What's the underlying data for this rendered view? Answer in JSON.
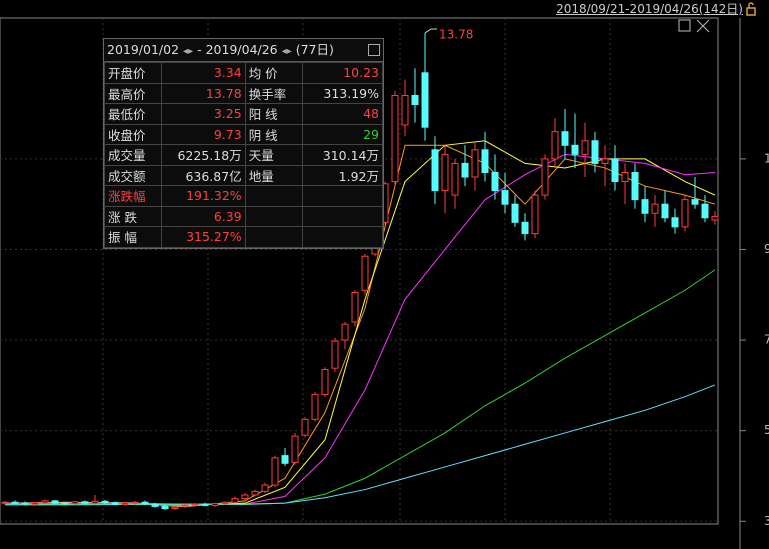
{
  "top_bar": {
    "range": "2018/09/21-2019/04/26(142日)"
  },
  "stats": {
    "start": "2019/01/02",
    "sep": "-",
    "end": "2019/04/26",
    "days": "(77日)",
    "rows": [
      [
        "开盘价",
        "3.34",
        "均 价",
        "10.23"
      ],
      [
        "最高价",
        "13.78",
        "换手率",
        "313.19%"
      ],
      [
        "最低价",
        "3.25",
        "阳 线",
        "48"
      ],
      [
        "收盘价",
        "9.73",
        "阴 线",
        "29"
      ],
      [
        "成交量",
        "6225.18万",
        "天量",
        "310.14万"
      ],
      [
        "成交额",
        "636.87亿",
        "地量",
        "1.92万"
      ],
      [
        "涨跌幅",
        "191.32%"
      ],
      [
        "涨 跌",
        "6.39"
      ],
      [
        "振 幅",
        "315.27%"
      ]
    ]
  },
  "chart_data": {
    "type": "candlestick",
    "ylim": [
      2.94,
      14.11
    ],
    "yticks": [
      3,
      5,
      7,
      9,
      11
    ],
    "grid": true,
    "up_color": "#ff3c3c",
    "down_color": "#54fcfc",
    "peak_label": "13.78",
    "ohlc": [
      [
        3.4,
        3.45,
        3.36,
        3.42
      ],
      [
        3.42,
        3.46,
        3.38,
        3.4
      ],
      [
        3.4,
        3.44,
        3.35,
        3.38
      ],
      [
        3.38,
        3.42,
        3.34,
        3.41
      ],
      [
        3.41,
        3.48,
        3.39,
        3.45
      ],
      [
        3.45,
        3.47,
        3.38,
        3.4
      ],
      [
        3.4,
        3.43,
        3.36,
        3.39
      ],
      [
        3.39,
        3.45,
        3.37,
        3.43
      ],
      [
        3.43,
        3.46,
        3.38,
        3.4
      ],
      [
        3.4,
        3.58,
        3.38,
        3.44
      ],
      [
        3.44,
        3.47,
        3.38,
        3.41
      ],
      [
        3.41,
        3.44,
        3.35,
        3.37
      ],
      [
        3.37,
        3.42,
        3.34,
        3.4
      ],
      [
        3.4,
        3.45,
        3.37,
        3.42
      ],
      [
        3.42,
        3.46,
        3.36,
        3.38
      ],
      [
        3.38,
        3.41,
        3.3,
        3.33
      ],
      [
        3.33,
        3.36,
        3.25,
        3.28
      ],
      [
        3.28,
        3.34,
        3.25,
        3.31
      ],
      [
        3.34,
        3.38,
        3.3,
        3.36
      ],
      [
        3.36,
        3.4,
        3.32,
        3.38
      ],
      [
        3.38,
        3.41,
        3.33,
        3.35
      ],
      [
        3.35,
        3.4,
        3.32,
        3.39
      ],
      [
        3.39,
        3.44,
        3.36,
        3.42
      ],
      [
        3.42,
        3.55,
        3.4,
        3.5
      ],
      [
        3.5,
        3.62,
        3.47,
        3.58
      ],
      [
        3.58,
        3.7,
        3.55,
        3.66
      ],
      [
        3.66,
        3.85,
        3.62,
        3.8
      ],
      [
        3.8,
        4.45,
        3.76,
        4.4
      ],
      [
        4.45,
        4.62,
        4.22,
        4.28
      ],
      [
        4.3,
        4.95,
        4.25,
        4.88
      ],
      [
        4.9,
        5.3,
        4.85,
        5.25
      ],
      [
        5.25,
        5.85,
        5.2,
        5.8
      ],
      [
        5.8,
        6.4,
        5.75,
        6.35
      ],
      [
        6.38,
        7.05,
        6.3,
        6.98
      ],
      [
        7.0,
        7.4,
        6.8,
        7.35
      ],
      [
        7.4,
        8.1,
        7.3,
        8.05
      ],
      [
        8.1,
        8.9,
        8.0,
        8.85
      ],
      [
        8.9,
        9.6,
        8.85,
        9.55
      ],
      [
        9.6,
        10.5,
        9.55,
        10.45
      ],
      [
        10.5,
        12.5,
        10.4,
        12.4
      ],
      [
        11.75,
        12.75,
        11.5,
        12.4
      ],
      [
        12.4,
        13.0,
        11.8,
        12.2
      ],
      [
        12.9,
        13.78,
        11.4,
        11.7
      ],
      [
        11.2,
        11.5,
        10.0,
        10.3
      ],
      [
        10.3,
        11.3,
        9.8,
        11.1
      ],
      [
        10.2,
        11.0,
        9.9,
        10.9
      ],
      [
        10.9,
        11.3,
        10.4,
        10.6
      ],
      [
        10.6,
        11.4,
        10.3,
        11.2
      ],
      [
        11.2,
        11.6,
        10.5,
        10.7
      ],
      [
        10.7,
        11.1,
        10.1,
        10.3
      ],
      [
        10.3,
        10.7,
        9.8,
        10.0
      ],
      [
        10.0,
        10.2,
        9.5,
        9.6
      ],
      [
        9.6,
        9.8,
        9.2,
        9.35
      ],
      [
        9.35,
        10.3,
        9.25,
        10.2
      ],
      [
        10.2,
        11.1,
        10.1,
        11.0
      ],
      [
        11.0,
        11.9,
        10.8,
        11.6
      ],
      [
        11.6,
        12.1,
        11.0,
        11.3
      ],
      [
        11.3,
        12.0,
        10.8,
        11.1
      ],
      [
        11.1,
        11.8,
        10.6,
        11.4
      ],
      [
        11.4,
        11.6,
        10.7,
        10.9
      ],
      [
        10.9,
        11.3,
        10.4,
        11.0
      ],
      [
        11.0,
        11.3,
        10.3,
        10.5
      ],
      [
        10.5,
        10.9,
        10.0,
        10.7
      ],
      [
        10.7,
        10.9,
        9.9,
        10.1
      ],
      [
        10.1,
        10.4,
        9.6,
        9.8
      ],
      [
        9.8,
        10.2,
        9.5,
        10.0
      ],
      [
        10.0,
        10.3,
        9.6,
        9.7
      ],
      [
        9.7,
        9.9,
        9.35,
        9.5
      ],
      [
        9.5,
        10.2,
        9.4,
        10.1
      ],
      [
        10.1,
        10.6,
        9.9,
        10.0
      ],
      [
        10.0,
        10.2,
        9.6,
        9.7
      ],
      [
        9.65,
        9.85,
        9.55,
        9.73
      ]
    ],
    "ma_x": [
      0,
      6,
      12,
      18,
      24,
      28,
      32,
      36,
      40,
      44,
      48,
      52,
      56,
      60,
      64,
      68,
      71
    ],
    "series": [
      {
        "color": "#ff9a1a",
        "values": [
          3.4,
          3.42,
          3.4,
          3.32,
          3.45,
          3.95,
          5.4,
          7.7,
          11.3,
          11.3,
          10.9,
          10.0,
          11.0,
          10.8,
          10.4,
          10.2,
          10.0
        ]
      },
      {
        "color": "#ffff40",
        "values": [
          3.4,
          3.41,
          3.41,
          3.35,
          3.4,
          3.75,
          4.8,
          7.9,
          10.5,
          11.3,
          11.4,
          10.9,
          10.8,
          11.0,
          11.0,
          10.5,
          10.2
        ]
      },
      {
        "color": "#ff30ff",
        "values": [
          3.4,
          3.4,
          3.4,
          3.38,
          3.38,
          3.55,
          4.4,
          5.9,
          7.9,
          9.0,
          10.1,
          10.65,
          11.1,
          11.0,
          10.9,
          10.65,
          10.7
        ]
      },
      {
        "color": "#30d030",
        "values": [
          3.36,
          3.36,
          3.37,
          3.37,
          3.37,
          3.4,
          3.6,
          3.95,
          4.45,
          4.95,
          5.55,
          6.05,
          6.6,
          7.1,
          7.6,
          8.1,
          8.55
        ]
      },
      {
        "color": "#60e0ff",
        "values": [
          3.38,
          3.38,
          3.38,
          3.38,
          3.38,
          3.4,
          3.52,
          3.7,
          3.95,
          4.2,
          4.45,
          4.7,
          4.95,
          5.2,
          5.45,
          5.75,
          6.01
        ]
      }
    ]
  }
}
